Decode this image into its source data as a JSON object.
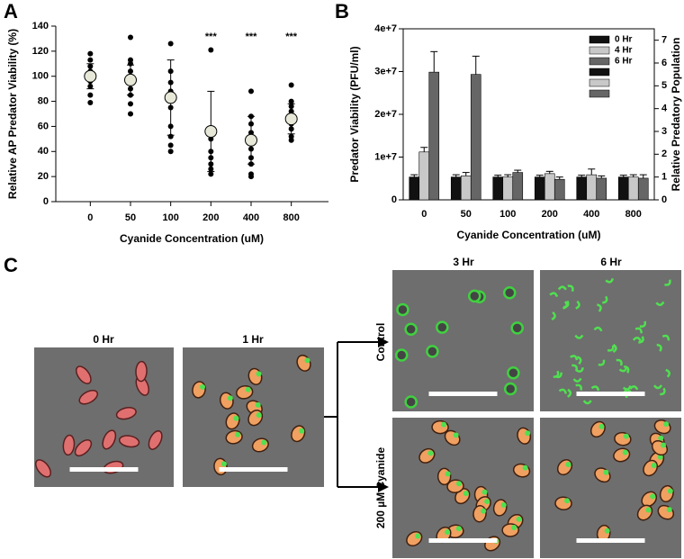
{
  "chart_data": [
    {
      "type": "dotplot",
      "y_label": "Relative AP Predator Viability (%)",
      "x_label": "Cyanide Concentration (uM)",
      "categories": [
        "0",
        "50",
        "100",
        "200",
        "400",
        "800"
      ],
      "points": [
        [
          118,
          113,
          108,
          104,
          100,
          96,
          92,
          85,
          79
        ],
        [
          131,
          113,
          110,
          104,
          100,
          95,
          90,
          85,
          78,
          70
        ],
        [
          126,
          104,
          95,
          88,
          75,
          60,
          52,
          45,
          40
        ],
        [
          121,
          58,
          50,
          40,
          35,
          30,
          26,
          22
        ],
        [
          88,
          68,
          62,
          55,
          48,
          42,
          35,
          30,
          22,
          20
        ],
        [
          93,
          80,
          76,
          72,
          68,
          65,
          62,
          58,
          52,
          49
        ]
      ],
      "means": [
        100,
        97,
        83,
        56,
        49,
        66
      ],
      "sd": [
        10,
        12,
        30,
        32,
        19,
        12
      ],
      "annotations": [
        null,
        null,
        null,
        "***",
        "***",
        "***"
      ],
      "ylim": [
        0,
        140
      ],
      "yticks": [
        0,
        20,
        40,
        60,
        80,
        100,
        120,
        140
      ],
      "point_color": "#000000",
      "mean_color": "#e8e8d8"
    },
    {
      "type": "bar",
      "y_label": "Predator Viability (PFU/ml)",
      "y2_label": "Relative Predatory Population",
      "x_label": "Cyanide Concentration (uM)",
      "categories": [
        "0",
        "50",
        "100",
        "200",
        "400",
        "800"
      ],
      "series": [
        {
          "name": "0 Hr",
          "color": "#111111",
          "axis": "y2",
          "values": [
            1.0,
            1.0,
            1.0,
            1.0,
            1.0,
            1.0
          ],
          "errors": [
            0.1,
            0.1,
            0.08,
            0.08,
            0.08,
            0.08
          ]
        },
        {
          "name": "4 Hr",
          "color": "#c8c8c8",
          "axis": "y2",
          "values": [
            2.1,
            1.05,
            1.0,
            1.15,
            1.1,
            1.0
          ],
          "errors": [
            0.2,
            0.15,
            0.1,
            0.1,
            0.25,
            0.1
          ]
        },
        {
          "name": "6 Hr",
          "color": "#666666",
          "axis": "y2",
          "values": [
            5.6,
            5.5,
            1.2,
            0.9,
            0.95,
            0.95
          ],
          "errors": [
            0.9,
            0.8,
            0.1,
            0.1,
            0.1,
            0.15
          ]
        }
      ],
      "ylim": [
        0,
        40000000
      ],
      "yticks": [
        0,
        {
          "value": 10000000,
          "label": "1e+7"
        },
        {
          "value": 20000000,
          "label": "2e+7"
        },
        {
          "value": 30000000,
          "label": "3e+7"
        },
        {
          "value": 40000000,
          "label": "4e+7"
        }
      ],
      "y2lim": [
        0,
        7.5
      ],
      "y2ticks": [
        0,
        1,
        2,
        3,
        4,
        5,
        6,
        7
      ],
      "legend": "upper-right"
    }
  ],
  "panel_labels": [
    "A",
    "B",
    "C"
  ],
  "micrographs": {
    "times": [
      "0 Hr",
      "1 Hr",
      "3 Hr",
      "6 Hr"
    ],
    "conditions": [
      "Control",
      "200 µM Cyanide"
    ]
  }
}
